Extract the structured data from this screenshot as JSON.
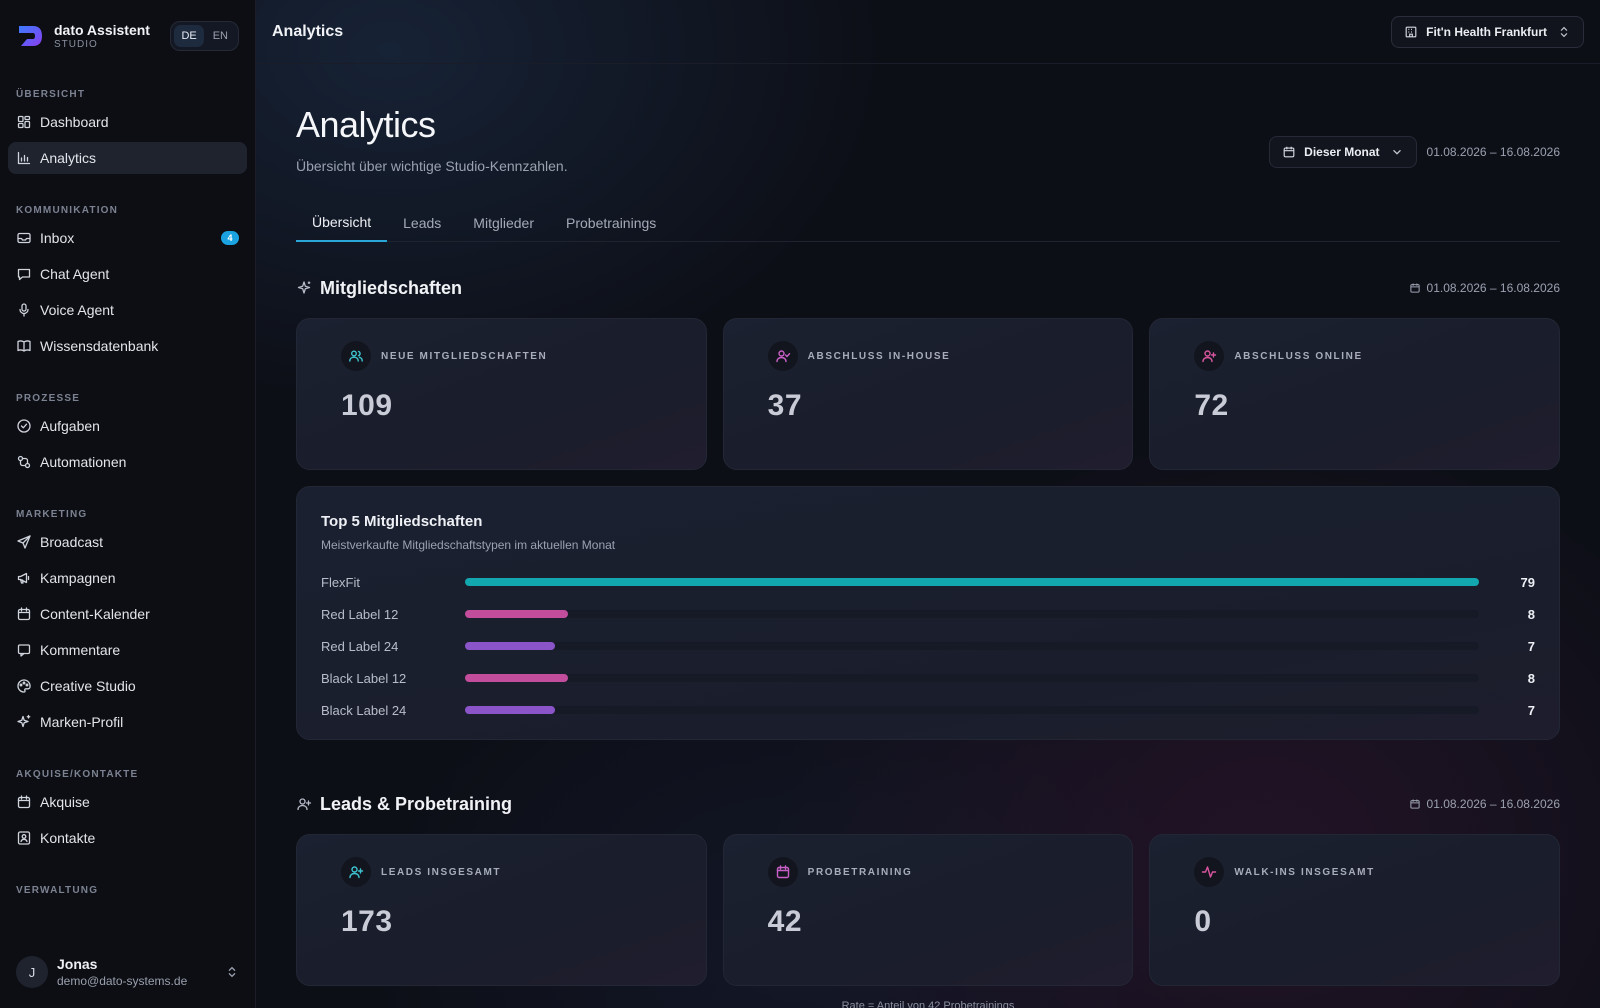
{
  "brand": {
    "name": "dato Assistent",
    "sub": "STUDIO",
    "lang_de": "DE",
    "lang_en": "EN"
  },
  "sidebar": {
    "sections": [
      {
        "title": "ÜBERSICHT",
        "items": [
          {
            "label": "Dashboard",
            "icon": "dashboard-icon"
          },
          {
            "label": "Analytics",
            "icon": "bar-chart-icon",
            "active": true
          }
        ]
      },
      {
        "title": "KOMMUNIKATION",
        "items": [
          {
            "label": "Inbox",
            "icon": "inbox-icon",
            "badge": "4"
          },
          {
            "label": "Chat Agent",
            "icon": "chat-icon"
          },
          {
            "label": "Voice Agent",
            "icon": "microphone-icon"
          },
          {
            "label": "Wissensdatenbank",
            "icon": "book-icon"
          }
        ]
      },
      {
        "title": "PROZESSE",
        "items": [
          {
            "label": "Aufgaben",
            "icon": "check-circle-icon"
          },
          {
            "label": "Automationen",
            "icon": "workflow-icon"
          }
        ]
      },
      {
        "title": "MARKETING",
        "items": [
          {
            "label": "Broadcast",
            "icon": "send-icon"
          },
          {
            "label": "Kampagnen",
            "icon": "megaphone-icon"
          },
          {
            "label": "Content-Kalender",
            "icon": "calendar-icon"
          },
          {
            "label": "Kommentare",
            "icon": "comment-icon"
          },
          {
            "label": "Creative Studio",
            "icon": "palette-icon"
          },
          {
            "label": "Marken-Profil",
            "icon": "sparkles-icon"
          }
        ]
      },
      {
        "title": "AKQUISE/KONTAKTE",
        "items": [
          {
            "label": "Akquise",
            "icon": "calendar-icon"
          },
          {
            "label": "Kontakte",
            "icon": "contact-icon"
          }
        ]
      },
      {
        "title": "VERWALTUNG",
        "items": []
      }
    ],
    "user": {
      "initial": "J",
      "name": "Jonas",
      "email": "demo@dato-systems.de"
    }
  },
  "topbar": {
    "title": "Analytics",
    "studio": "Fit'n Health Frankfurt"
  },
  "page": {
    "title": "Analytics",
    "subtitle": "Übersicht über wichtige Studio-Kennzahlen.",
    "period_label": "Dieser Monat",
    "period_range": "01.08.2026 – 16.08.2026",
    "tabs": [
      {
        "label": "Übersicht",
        "active": true
      },
      {
        "label": "Leads"
      },
      {
        "label": "Mitglieder"
      },
      {
        "label": "Probetrainings"
      }
    ]
  },
  "memberships": {
    "title": "Mitgliedschaften",
    "range": "01.08.2026 – 16.08.2026",
    "cards": [
      {
        "label": "NEUE MITGLIEDSCHAFTEN",
        "value": "109",
        "icon": "users-icon",
        "color": "#3fc2cf"
      },
      {
        "label": "ABSCHLUSS IN-HOUSE",
        "value": "37",
        "icon": "user-check-icon",
        "color": "#c85fc6"
      },
      {
        "label": "ABSCHLUSS ONLINE",
        "value": "72",
        "icon": "user-plus-icon",
        "color": "#d9559f"
      }
    ]
  },
  "top5": {
    "title": "Top 5 Mitgliedschaften",
    "subtitle": "Meistverkaufte Mitgliedschaftstypen im aktuellen Monat",
    "rows": [
      {
        "label": "FlexFit",
        "value": 79,
        "display": "79",
        "color": "#13a7b0"
      },
      {
        "label": "Red Label 12",
        "value": 8,
        "display": "8",
        "color": "#c24d9d"
      },
      {
        "label": "Red Label 24",
        "value": 7,
        "display": "7",
        "color": "#8b55c9"
      },
      {
        "label": "Black Label 12",
        "value": 8,
        "display": "8",
        "color": "#c24d9d"
      },
      {
        "label": "Black Label 24",
        "value": 7,
        "display": "7",
        "color": "#8b55c9"
      }
    ]
  },
  "leads": {
    "title": "Leads & Probetraining",
    "range": "01.08.2026 – 16.08.2026",
    "cards": [
      {
        "label": "LEADS INSGESAMT",
        "value": "173",
        "icon": "user-plus-icon",
        "color": "#3fc2cf"
      },
      {
        "label": "PROBETRAINING",
        "value": "42",
        "icon": "calendar-icon",
        "color": "#c85fc6"
      },
      {
        "label": "WALK-INS INSGESAMT",
        "value": "0",
        "icon": "activity-icon",
        "color": "#d9559f"
      }
    ],
    "footnote": "Rate = Anteil von 42 Probetrainings"
  }
}
